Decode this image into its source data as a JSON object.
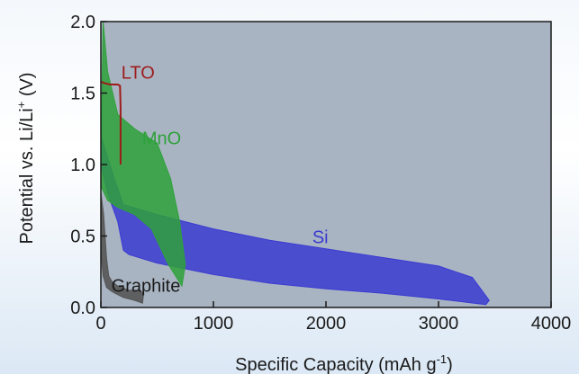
{
  "chart_data": {
    "type": "area",
    "xlabel": "Specific Capacity (mAh g",
    "xlabel_sup": "-1",
    "xlabel_end": ")",
    "ylabel": "Potential vs. Li/Li",
    "ylabel_sup": "+",
    "ylabel_end": " (V)",
    "xlim": [
      0,
      4000
    ],
    "ylim": [
      0,
      2.0
    ],
    "x_ticks": [
      0,
      1000,
      2000,
      3000,
      4000
    ],
    "y_ticks": [
      0.0,
      0.5,
      1.0,
      1.5,
      2.0
    ],
    "x_tick_labels": [
      "0",
      "1000",
      "2000",
      "3000",
      "4000"
    ],
    "y_tick_labels": [
      "0.0",
      "0.5",
      "1.0",
      "1.5",
      "2.0"
    ],
    "background": "#a9b4c2",
    "grid": false,
    "series": [
      {
        "name": "Si",
        "color": "#3b3bd1",
        "fill_opacity": 0.85,
        "label_at": [
          1950,
          0.45
        ],
        "polygon": [
          [
            0,
            1.2
          ],
          [
            120,
            0.9
          ],
          [
            200,
            0.72
          ],
          [
            500,
            0.65
          ],
          [
            1000,
            0.55
          ],
          [
            1500,
            0.47
          ],
          [
            2000,
            0.41
          ],
          [
            2500,
            0.35
          ],
          [
            3000,
            0.29
          ],
          [
            3300,
            0.21
          ],
          [
            3450,
            0.05
          ],
          [
            3420,
            0.02
          ],
          [
            3000,
            0.06
          ],
          [
            2500,
            0.1
          ],
          [
            2000,
            0.13
          ],
          [
            1500,
            0.17
          ],
          [
            1000,
            0.23
          ],
          [
            500,
            0.31
          ],
          [
            250,
            0.37
          ],
          [
            200,
            0.4
          ],
          [
            150,
            0.6
          ],
          [
            60,
            0.8
          ],
          [
            0,
            1.0
          ]
        ]
      },
      {
        "name": "MnO",
        "color": "#2ea13a",
        "fill_opacity": 0.85,
        "label_at": [
          540,
          1.14
        ],
        "polygon": [
          [
            20,
            2.0
          ],
          [
            60,
            1.65
          ],
          [
            150,
            1.35
          ],
          [
            300,
            1.25
          ],
          [
            500,
            1.15
          ],
          [
            620,
            0.9
          ],
          [
            700,
            0.6
          ],
          [
            750,
            0.3
          ],
          [
            720,
            0.15
          ],
          [
            600,
            0.3
          ],
          [
            450,
            0.55
          ],
          [
            300,
            0.65
          ],
          [
            150,
            0.7
          ],
          [
            60,
            0.75
          ],
          [
            0,
            0.85
          ],
          [
            10,
            1.5
          ]
        ]
      },
      {
        "name": "Graphite",
        "color": "#555555",
        "fill_opacity": 0.9,
        "label_at": [
          400,
          0.11
        ],
        "polygon": [
          [
            0,
            0.8
          ],
          [
            25,
            0.65
          ],
          [
            50,
            0.35
          ],
          [
            70,
            0.22
          ],
          [
            100,
            0.18
          ],
          [
            150,
            0.15
          ],
          [
            250,
            0.12
          ],
          [
            330,
            0.12
          ],
          [
            380,
            0.1
          ],
          [
            370,
            0.03
          ],
          [
            300,
            0.05
          ],
          [
            200,
            0.07
          ],
          [
            100,
            0.11
          ],
          [
            50,
            0.14
          ],
          [
            20,
            0.22
          ],
          [
            0,
            0.4
          ]
        ]
      },
      {
        "name": "LTO",
        "color": "#9e1b1b",
        "type": "line",
        "label_at": [
          330,
          1.6
        ],
        "points": [
          [
            0,
            1.58
          ],
          [
            30,
            1.57
          ],
          [
            80,
            1.56
          ],
          [
            150,
            1.56
          ],
          [
            170,
            1.55
          ],
          [
            175,
            1.4
          ],
          [
            175,
            1.0
          ]
        ]
      }
    ]
  }
}
